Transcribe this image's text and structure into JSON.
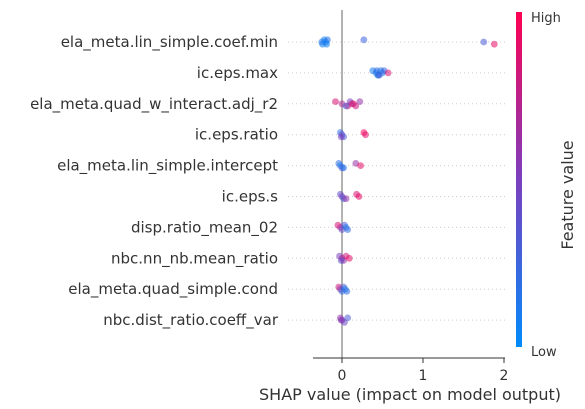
{
  "chart_data": {
    "type": "scatter",
    "subtype": "shap-beeswarm",
    "title": "",
    "xlabel": "SHAP value (impact on model output)",
    "xlim": [
      -0.35,
      2.1
    ],
    "xticks": [
      0,
      1,
      2
    ],
    "grid": "dotted horizontal row guides",
    "colorbar": {
      "label": "Feature value",
      "high_label": "High",
      "low_label": "Low",
      "high_color": "#ff0052",
      "low_color": "#008bfb"
    },
    "features": [
      {
        "name": "ela_meta.lin_simple.coef.min",
        "points": [
          {
            "x": -0.22,
            "v": 0.05
          },
          {
            "x": -0.2,
            "v": 0.1
          },
          {
            "x": -0.24,
            "v": 0.08
          },
          {
            "x": -0.18,
            "v": 0.15
          },
          {
            "x": -0.25,
            "v": 0.12
          },
          {
            "x": -0.19,
            "v": 0.07
          },
          {
            "x": 0.27,
            "v": 0.25
          },
          {
            "x": 1.75,
            "v": 0.3
          },
          {
            "x": 1.88,
            "v": 0.9
          }
        ]
      },
      {
        "name": "ic.eps.max",
        "points": [
          {
            "x": 0.38,
            "v": 0.1
          },
          {
            "x": 0.42,
            "v": 0.15
          },
          {
            "x": 0.45,
            "v": 0.2
          },
          {
            "x": 0.48,
            "v": 0.12
          },
          {
            "x": 0.5,
            "v": 0.1
          },
          {
            "x": 0.44,
            "v": 0.08
          },
          {
            "x": 0.52,
            "v": 0.25
          },
          {
            "x": 0.57,
            "v": 0.85
          },
          {
            "x": 0.46,
            "v": 0.3
          },
          {
            "x": 0.43,
            "v": 0.18
          }
        ]
      },
      {
        "name": "ela_meta.quad_w_interact.adj_r2",
        "points": [
          {
            "x": -0.08,
            "v": 0.85
          },
          {
            "x": 0.0,
            "v": 0.7
          },
          {
            "x": 0.07,
            "v": 0.9
          },
          {
            "x": 0.1,
            "v": 0.5
          },
          {
            "x": 0.14,
            "v": 0.95
          },
          {
            "x": 0.17,
            "v": 0.8
          },
          {
            "x": 0.22,
            "v": 0.6
          },
          {
            "x": 0.12,
            "v": 0.75
          },
          {
            "x": 0.05,
            "v": 0.3
          }
        ]
      },
      {
        "name": "ic.eps.ratio",
        "points": [
          {
            "x": -0.02,
            "v": 0.2
          },
          {
            "x": 0.0,
            "v": 0.4
          },
          {
            "x": 0.02,
            "v": 0.3
          },
          {
            "x": 0.27,
            "v": 0.95
          },
          {
            "x": 0.29,
            "v": 0.9
          },
          {
            "x": -0.01,
            "v": 0.5
          }
        ]
      },
      {
        "name": "ela_meta.lin_simple.intercept",
        "points": [
          {
            "x": -0.04,
            "v": 0.2
          },
          {
            "x": -0.02,
            "v": 0.1
          },
          {
            "x": 0.0,
            "v": 0.3
          },
          {
            "x": 0.17,
            "v": 0.6
          },
          {
            "x": 0.23,
            "v": 0.9
          },
          {
            "x": 0.02,
            "v": 0.15
          }
        ]
      },
      {
        "name": "ic.eps.s",
        "points": [
          {
            "x": -0.02,
            "v": 0.4
          },
          {
            "x": 0.0,
            "v": 0.5
          },
          {
            "x": 0.02,
            "v": 0.3
          },
          {
            "x": 0.18,
            "v": 0.85
          },
          {
            "x": 0.21,
            "v": 0.9
          },
          {
            "x": 0.05,
            "v": 0.6
          }
        ]
      },
      {
        "name": "disp.ratio_mean_02",
        "points": [
          {
            "x": -0.05,
            "v": 0.85
          },
          {
            "x": -0.02,
            "v": 0.7
          },
          {
            "x": 0.0,
            "v": 0.4
          },
          {
            "x": 0.03,
            "v": 0.3
          },
          {
            "x": 0.05,
            "v": 0.15
          },
          {
            "x": 0.07,
            "v": 0.2
          }
        ]
      },
      {
        "name": "nbc.nn_nb.mean_ratio",
        "points": [
          {
            "x": -0.03,
            "v": 0.5
          },
          {
            "x": 0.0,
            "v": 0.7
          },
          {
            "x": 0.02,
            "v": 0.6
          },
          {
            "x": 0.05,
            "v": 0.8
          },
          {
            "x": 0.09,
            "v": 0.9
          },
          {
            "x": -0.01,
            "v": 0.4
          }
        ]
      },
      {
        "name": "ela_meta.quad_simple.cond",
        "points": [
          {
            "x": -0.04,
            "v": 0.8
          },
          {
            "x": -0.02,
            "v": 0.6
          },
          {
            "x": 0.0,
            "v": 0.2
          },
          {
            "x": 0.02,
            "v": 0.3
          },
          {
            "x": 0.04,
            "v": 0.1
          },
          {
            "x": 0.06,
            "v": 0.2
          }
        ]
      },
      {
        "name": "nbc.dist_ratio.coeff_var",
        "points": [
          {
            "x": -0.02,
            "v": 0.6
          },
          {
            "x": 0.0,
            "v": 0.5
          },
          {
            "x": 0.03,
            "v": 0.45
          },
          {
            "x": 0.07,
            "v": 0.3
          },
          {
            "x": -0.01,
            "v": 0.55
          }
        ]
      }
    ]
  }
}
